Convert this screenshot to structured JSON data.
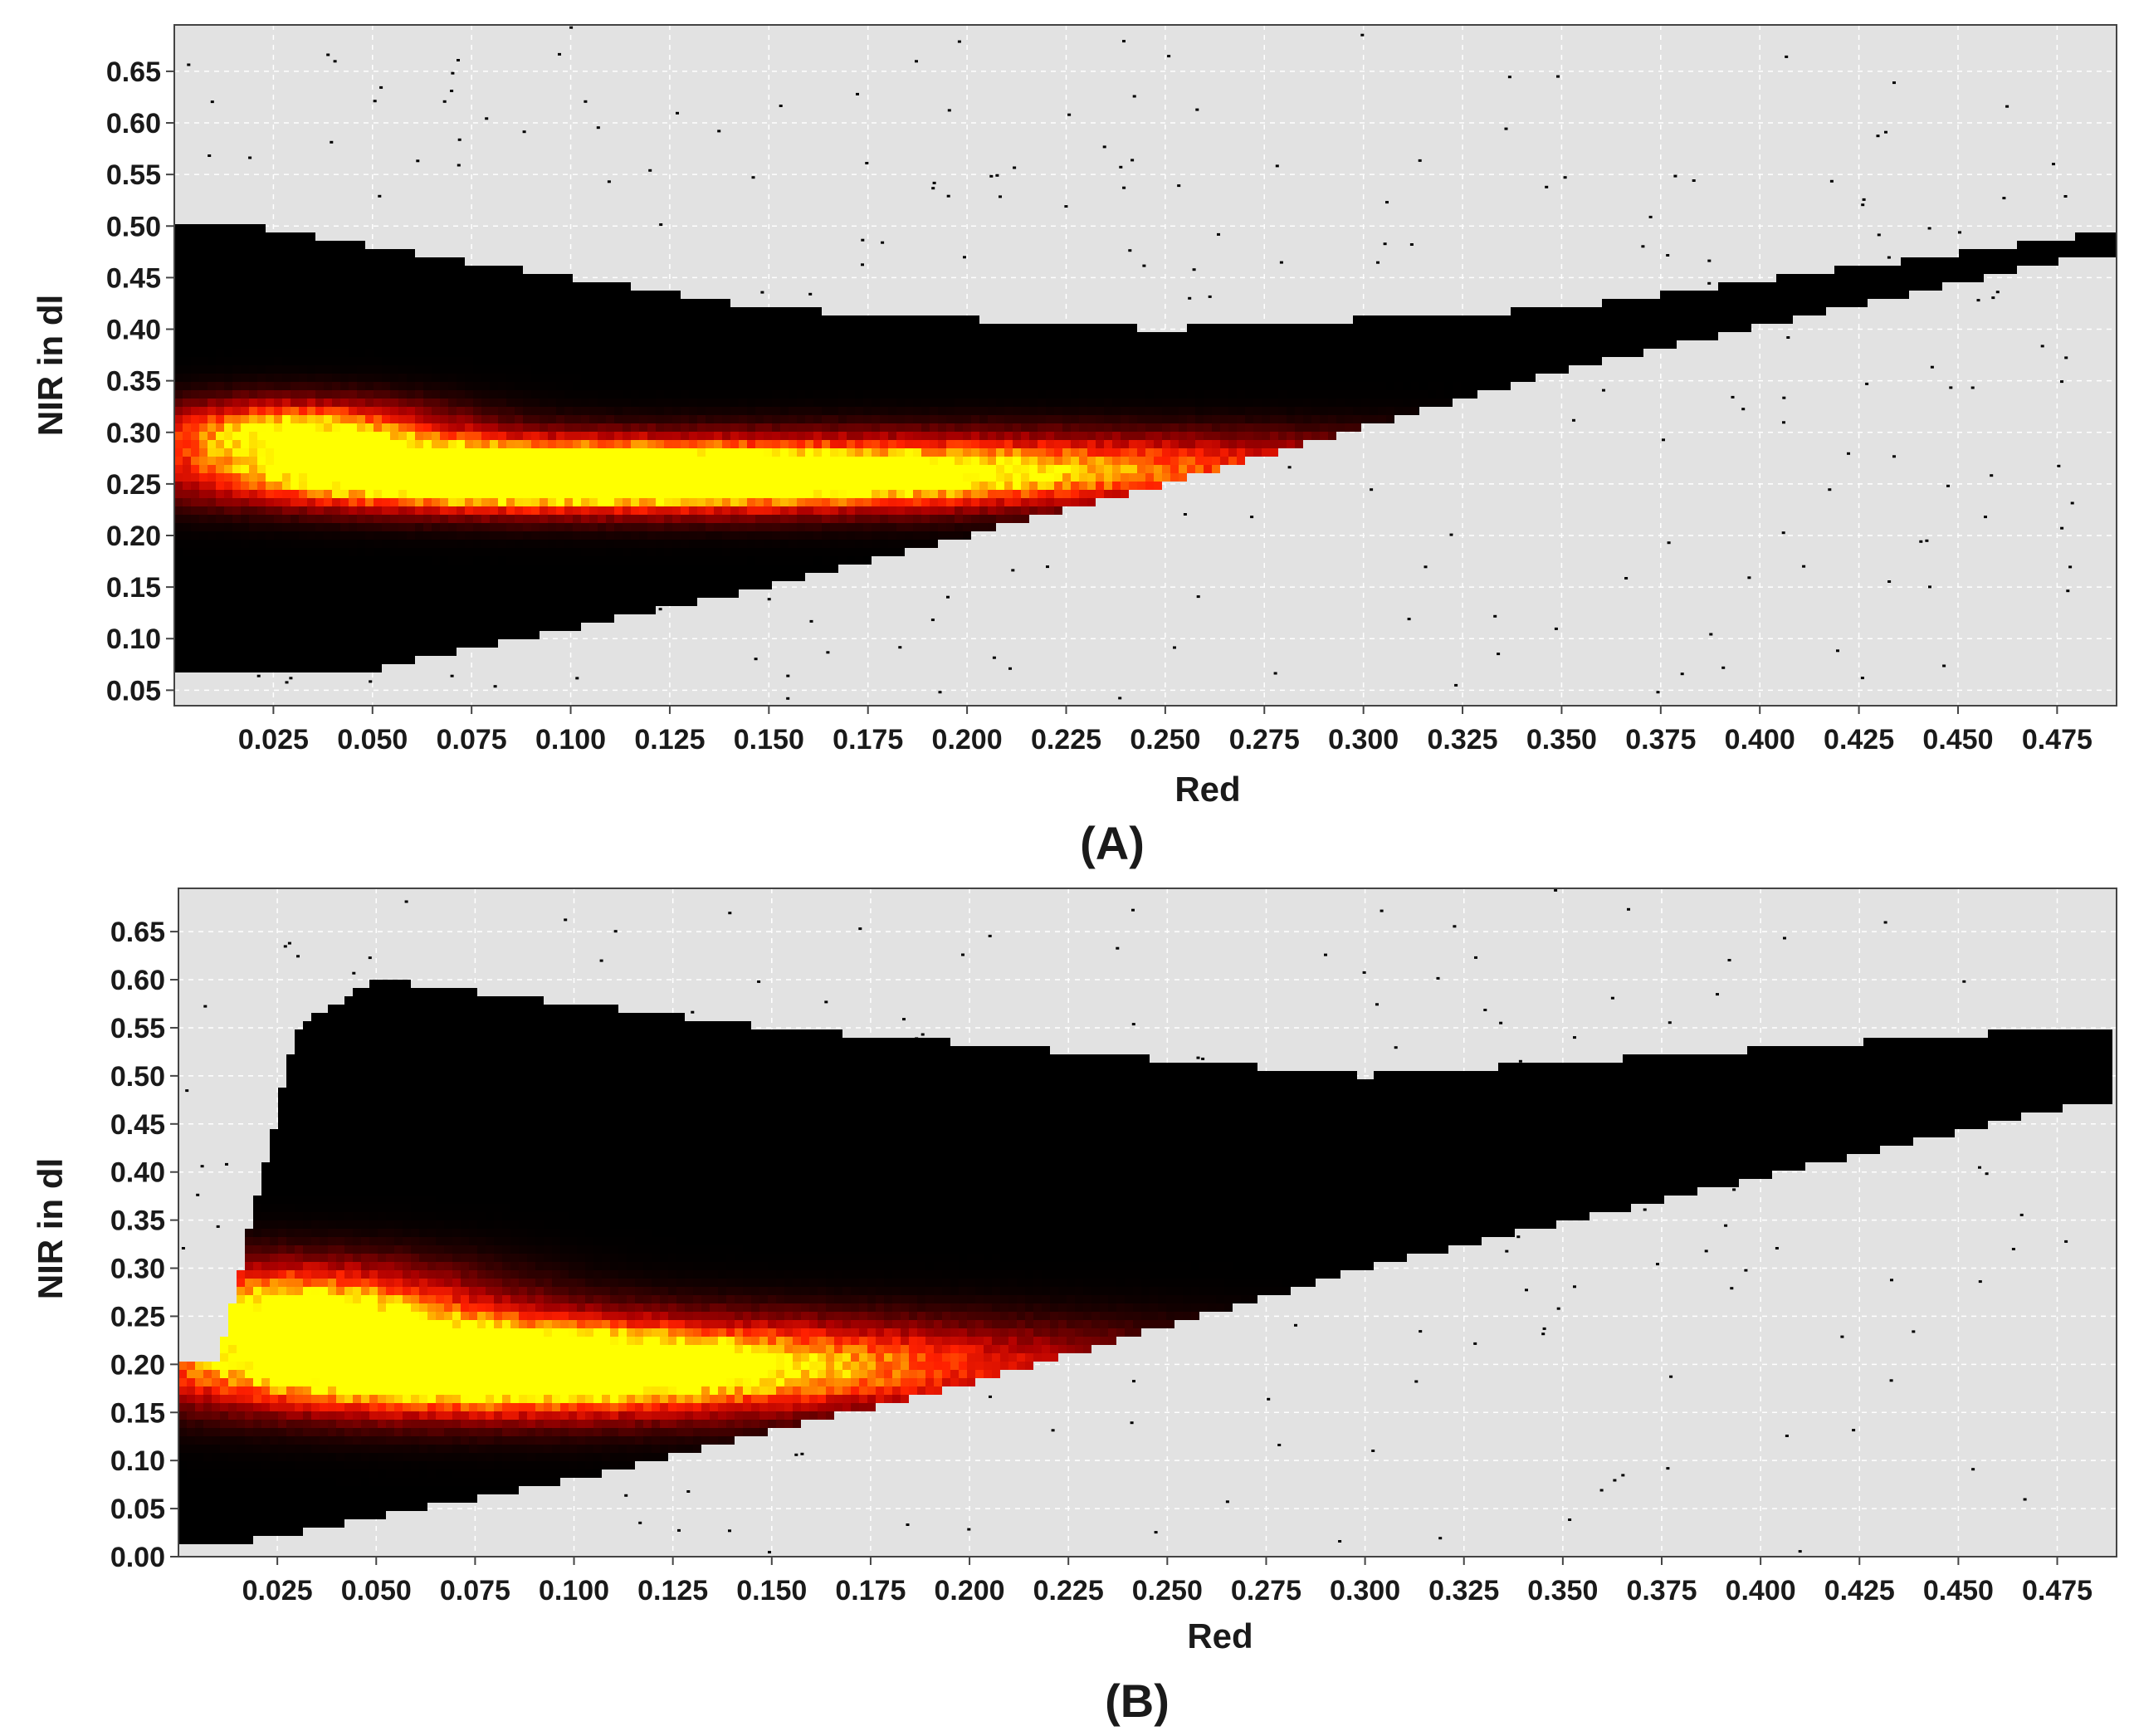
{
  "chart_data": [
    {
      "type": "heatmap",
      "panel_label": "(A)",
      "xlabel": "Red",
      "ylabel": "NIR in dl",
      "xlim": [
        0.0,
        0.49
      ],
      "ylim": [
        0.035,
        0.695
      ],
      "xticks": [
        "0.025",
        "0.050",
        "0.075",
        "0.100",
        "0.125",
        "0.150",
        "0.175",
        "0.200",
        "0.225",
        "0.250",
        "0.275",
        "0.300",
        "0.325",
        "0.350",
        "0.375",
        "0.400",
        "0.425",
        "0.450",
        "0.475"
      ],
      "yticks": [
        "0.05",
        "0.10",
        "0.15",
        "0.20",
        "0.25",
        "0.30",
        "0.35",
        "0.40",
        "0.45",
        "0.50",
        "0.55",
        "0.60",
        "0.65"
      ],
      "grid": true,
      "colormap": [
        "#000000",
        "#5a0000",
        "#b00000",
        "#ff2000",
        "#ff8c00",
        "#ffff00"
      ],
      "density": {
        "hotspots": [
          {
            "red": 0.03,
            "nir": 0.3,
            "weight": 1.0
          },
          {
            "red": 0.07,
            "nir": 0.26,
            "weight": 0.85
          },
          {
            "red": 0.12,
            "nir": 0.255,
            "weight": 0.75
          },
          {
            "red": 0.17,
            "nir": 0.255,
            "weight": 0.6
          },
          {
            "red": 0.22,
            "nir": 0.275,
            "weight": 0.4
          }
        ],
        "lower_edge": [
          [
            0.05,
            0.07
          ],
          [
            0.15,
            0.15
          ],
          [
            0.25,
            0.25
          ],
          [
            0.35,
            0.36
          ],
          [
            0.48,
            0.47
          ]
        ],
        "upper_edge": [
          [
            0.02,
            0.5
          ],
          [
            0.05,
            0.48
          ],
          [
            0.15,
            0.42
          ],
          [
            0.25,
            0.4
          ],
          [
            0.35,
            0.42
          ],
          [
            0.48,
            0.49
          ]
        ]
      }
    },
    {
      "type": "heatmap",
      "panel_label": "(B)",
      "xlabel": "Red",
      "ylabel": "NIR in dl",
      "xlim": [
        0.0,
        0.49
      ],
      "ylim": [
        0.0,
        0.695
      ],
      "xticks": [
        "0.025",
        "0.050",
        "0.075",
        "0.100",
        "0.125",
        "0.150",
        "0.175",
        "0.200",
        "0.225",
        "0.250",
        "0.275",
        "0.300",
        "0.325",
        "0.350",
        "0.375",
        "0.400",
        "0.425",
        "0.450",
        "0.475"
      ],
      "yticks": [
        "0.00",
        "0.05",
        "0.10",
        "0.15",
        "0.20",
        "0.25",
        "0.30",
        "0.35",
        "0.40",
        "0.45",
        "0.50",
        "0.55",
        "0.60",
        "0.65"
      ],
      "grid": true,
      "colormap": [
        "#000000",
        "#5a0000",
        "#b00000",
        "#ff2000",
        "#ff8c00",
        "#ffff00"
      ],
      "density": {
        "hotspots": [
          {
            "red": 0.028,
            "nir": 0.26,
            "weight": 1.0
          },
          {
            "red": 0.06,
            "nir": 0.2,
            "weight": 0.85
          },
          {
            "red": 0.1,
            "nir": 0.195,
            "weight": 0.7
          },
          {
            "red": 0.15,
            "nir": 0.2,
            "weight": 0.5
          }
        ],
        "lower_edge": [
          [
            0.01,
            0.01
          ],
          [
            0.1,
            0.08
          ],
          [
            0.2,
            0.18
          ],
          [
            0.3,
            0.3
          ],
          [
            0.48,
            0.47
          ]
        ],
        "upper_edge": [
          [
            0.01,
            0.2
          ],
          [
            0.03,
            0.55
          ],
          [
            0.05,
            0.6
          ],
          [
            0.15,
            0.55
          ],
          [
            0.3,
            0.5
          ],
          [
            0.48,
            0.55
          ]
        ]
      }
    }
  ]
}
